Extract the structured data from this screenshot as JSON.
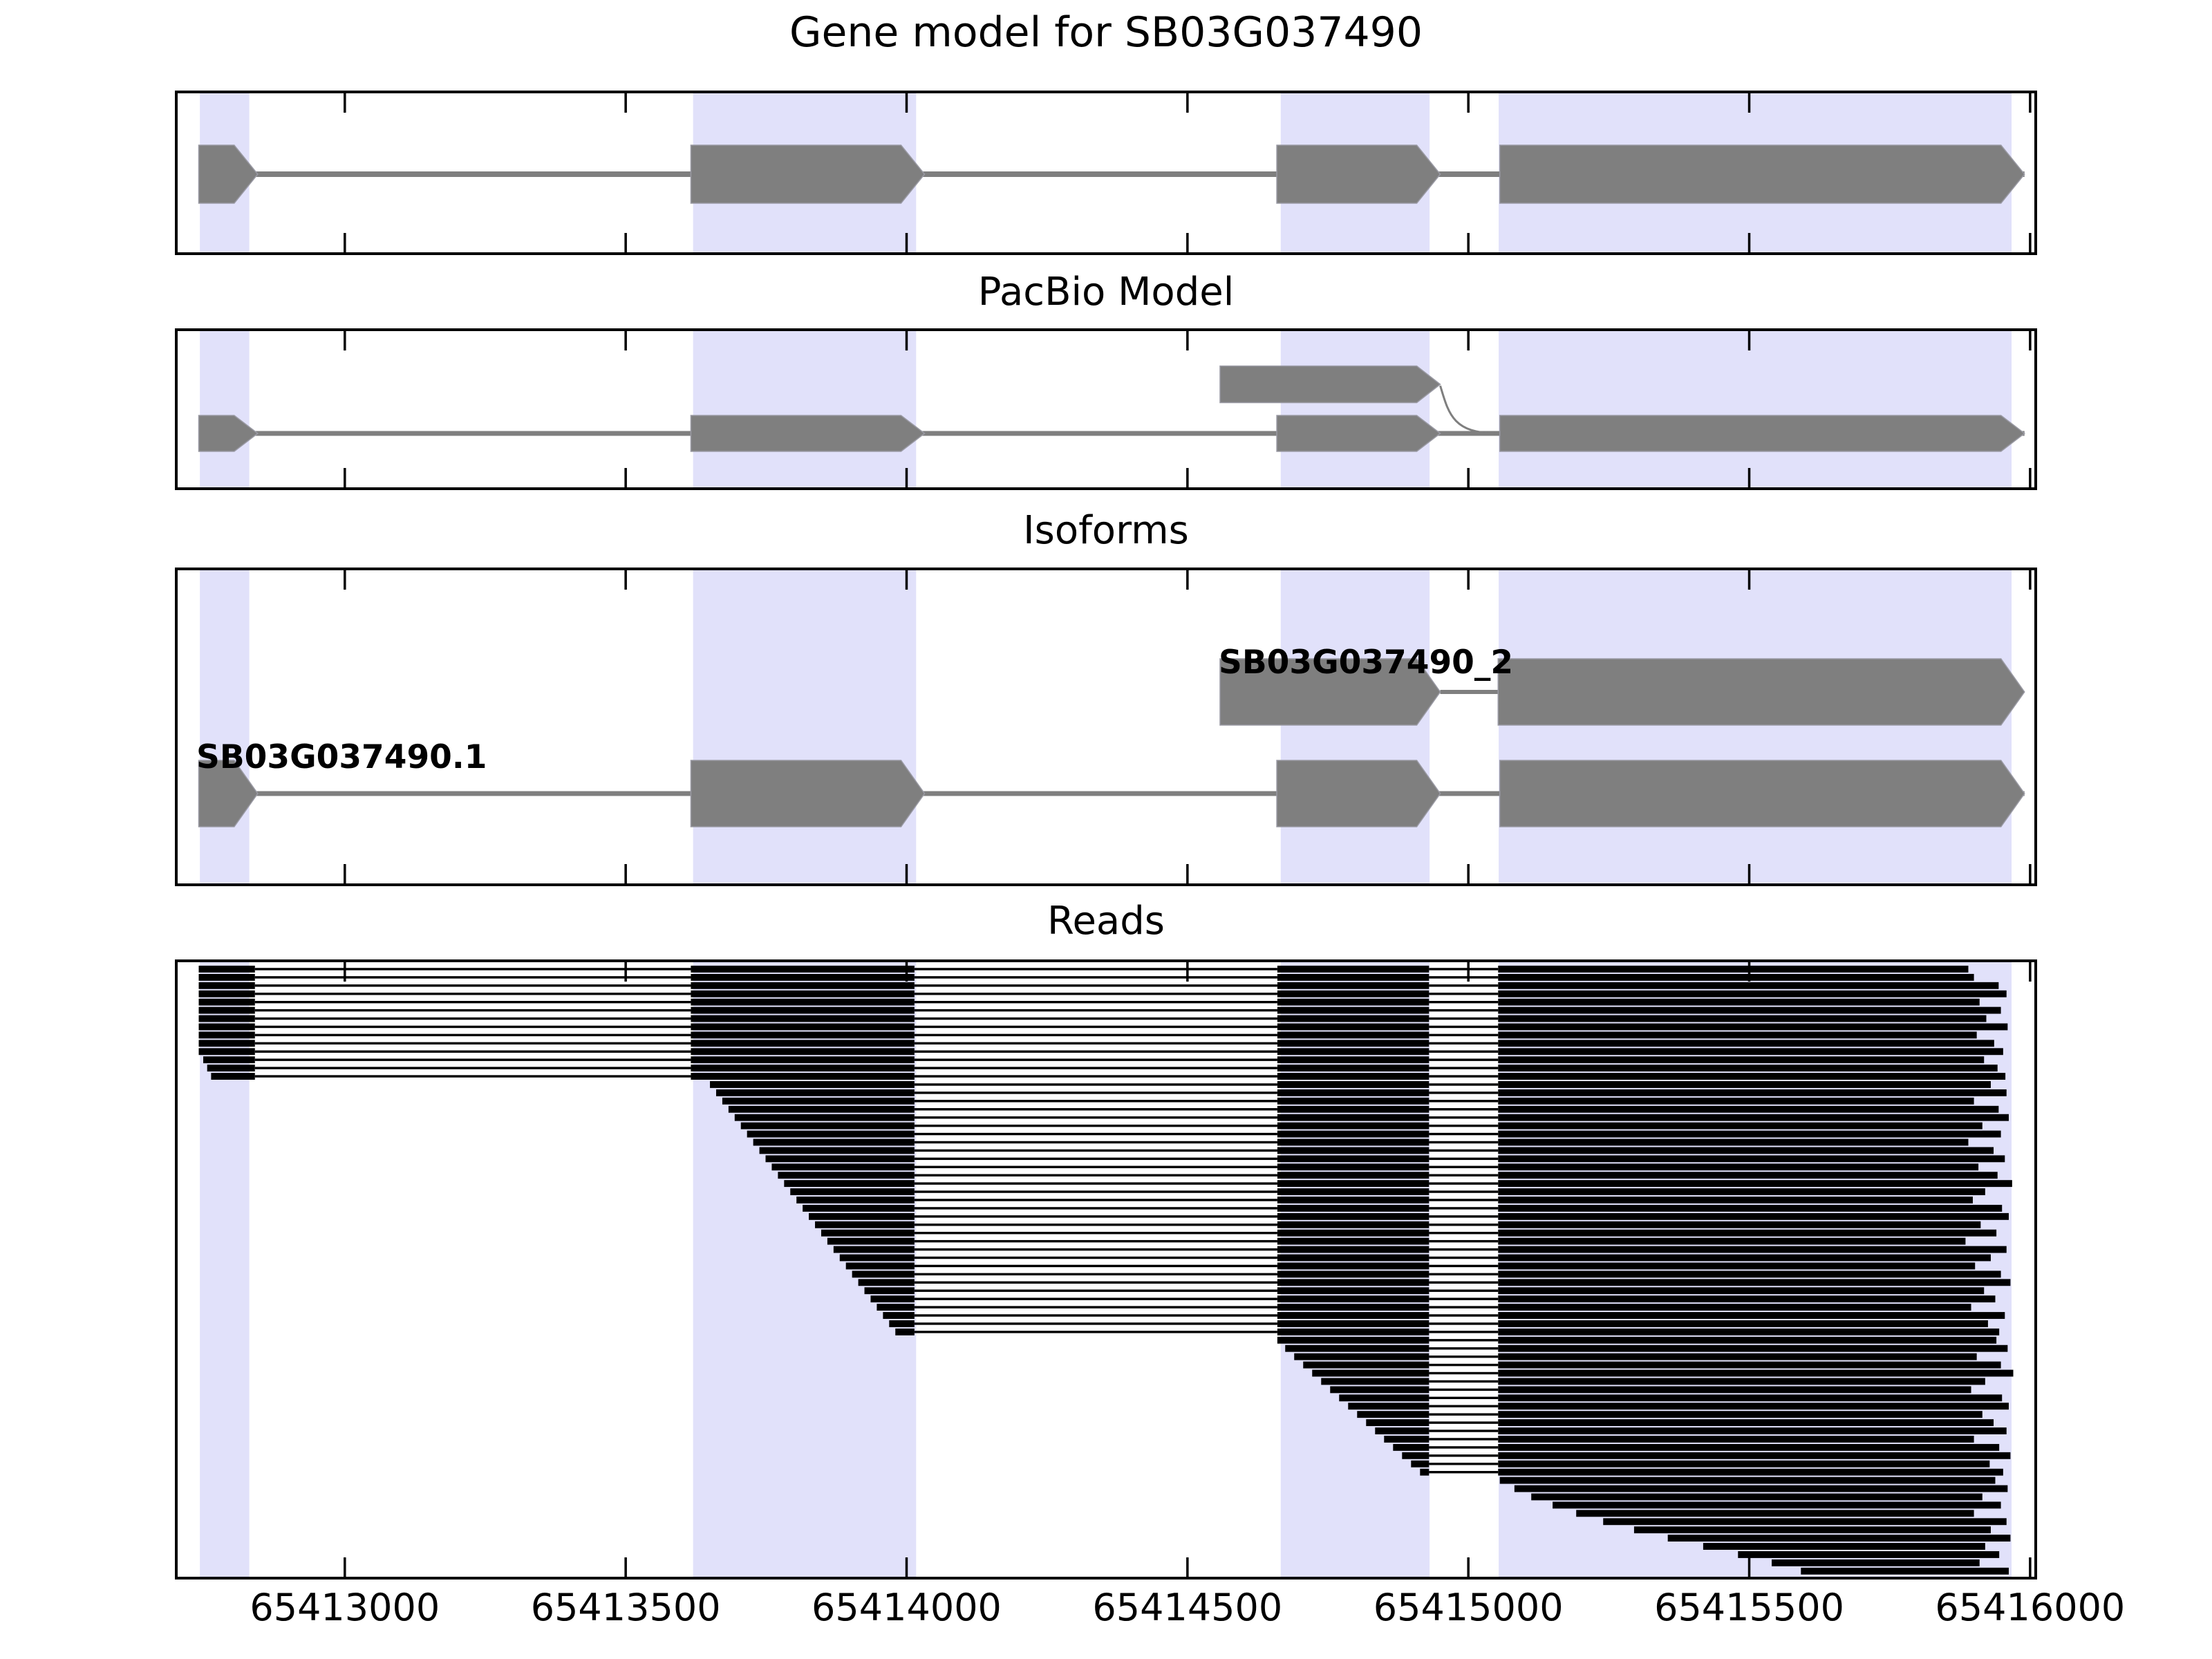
{
  "figure": {
    "panels": {
      "gene_model": {
        "title": "Gene model for SB03G037490"
      },
      "pacbio": {
        "title": "PacBio Model"
      },
      "isoforms": {
        "title": "Isoforms"
      },
      "reads": {
        "title": "Reads"
      }
    }
  },
  "chart_data": {
    "type": "gene-browser",
    "description": "Four stacked genome-browser tracks sharing one x axis (genomic position, bp): annotated gene model, PacBio model with one extra upstream exon spliced to the last exon, two isoforms, and stacked PacBio reads.",
    "xlim": [
      65412700,
      65416010
    ],
    "x_ticks": [
      65413000,
      65413500,
      65414000,
      65414500,
      65415000,
      65415500,
      65416000
    ],
    "x_tick_labels": [
      "65413000",
      "65413500",
      "65414000",
      "65414500",
      "65415000",
      "65415500",
      "65416000"
    ],
    "highlight_bands": [
      [
        65412742,
        65412830
      ],
      [
        65413620,
        65414017
      ],
      [
        65414666,
        65414931
      ],
      [
        65415054,
        65415967
      ]
    ],
    "gene_model": {
      "exons": [
        [
          65412740,
          65412845
        ],
        [
          65413616,
          65414032
        ],
        [
          65414659,
          65414950
        ],
        [
          65415056,
          65415990
        ]
      ]
    },
    "pacbio_model": {
      "main_exons": [
        [
          65412740,
          65412845
        ],
        [
          65413616,
          65414032
        ],
        [
          65414659,
          65414950
        ],
        [
          65415056,
          65415990
        ]
      ],
      "alt_upper_exon": [
        65414558,
        65414950
      ],
      "splice_junction_to": 65415056
    },
    "isoforms": [
      {
        "name": "SB03G037490_2",
        "row": "upper",
        "exons": [
          [
            65414558,
            65414950
          ],
          [
            65415053,
            65415990
          ]
        ]
      },
      {
        "name": "SB03G037490.1",
        "row": "lower",
        "exons": [
          [
            65412740,
            65412845
          ],
          [
            65413616,
            65414032
          ],
          [
            65414659,
            65414950
          ],
          [
            65415056,
            65415990
          ]
        ]
      }
    ],
    "read_exon_blocks": [
      [
        65412740,
        65412840
      ],
      [
        65413616,
        65414014
      ],
      [
        65414660,
        65414930
      ],
      [
        65415053,
        65415995
      ]
    ],
    "reads": [
      [
        65412740,
        65415890
      ],
      [
        65412740,
        65415900
      ],
      [
        65412740,
        65415944
      ],
      [
        65412740,
        65415958
      ],
      [
        65412740,
        65415910
      ],
      [
        65412740,
        65415948
      ],
      [
        65412740,
        65415922
      ],
      [
        65412740,
        65415960
      ],
      [
        65412740,
        65415905
      ],
      [
        65412740,
        65415936
      ],
      [
        65412740,
        65415952
      ],
      [
        65412748,
        65415918
      ],
      [
        65412755,
        65415942
      ],
      [
        65412762,
        65415956
      ],
      [
        65413650,
        65415930
      ],
      [
        65413661,
        65415958
      ],
      [
        65413672,
        65415900
      ],
      [
        65413683,
        65415944
      ],
      [
        65413694,
        65415962
      ],
      [
        65413705,
        65415915
      ],
      [
        65413716,
        65415948
      ],
      [
        65413727,
        65415890
      ],
      [
        65413738,
        65415935
      ],
      [
        65413749,
        65415955
      ],
      [
        65413760,
        65415908
      ],
      [
        65413771,
        65415942
      ],
      [
        65413782,
        65415968
      ],
      [
        65413793,
        65415920
      ],
      [
        65413804,
        65415898
      ],
      [
        65413815,
        65415950
      ],
      [
        65413826,
        65415962
      ],
      [
        65413837,
        65415912
      ],
      [
        65413848,
        65415940
      ],
      [
        65413859,
        65415885
      ],
      [
        65413870,
        65415958
      ],
      [
        65413881,
        65415930
      ],
      [
        65413892,
        65415902
      ],
      [
        65413903,
        65415948
      ],
      [
        65413914,
        65415965
      ],
      [
        65413925,
        65415918
      ],
      [
        65413936,
        65415938
      ],
      [
        65413947,
        65415895
      ],
      [
        65413958,
        65415955
      ],
      [
        65413969,
        65415925
      ],
      [
        65413980,
        65415945
      ],
      [
        65414658,
        65415940
      ],
      [
        65414674,
        65415960
      ],
      [
        65414690,
        65415905
      ],
      [
        65414706,
        65415948
      ],
      [
        65414722,
        65415970
      ],
      [
        65414738,
        65415920
      ],
      [
        65414754,
        65415895
      ],
      [
        65414770,
        65415950
      ],
      [
        65414786,
        65415962
      ],
      [
        65414802,
        65415915
      ],
      [
        65414818,
        65415935
      ],
      [
        65414834,
        65415958
      ],
      [
        65414850,
        65415900
      ],
      [
        65414866,
        65415945
      ],
      [
        65414882,
        65415965
      ],
      [
        65414898,
        65415928
      ],
      [
        65414914,
        65415952
      ],
      [
        65415056,
        65415938
      ],
      [
        65415082,
        65415960
      ],
      [
        65415112,
        65415915
      ],
      [
        65415150,
        65415948
      ],
      [
        65415192,
        65415900
      ],
      [
        65415240,
        65415958
      ],
      [
        65415295,
        65415930
      ],
      [
        65415355,
        65415965
      ],
      [
        65415418,
        65415920
      ],
      [
        65415480,
        65415945
      ],
      [
        65415540,
        65415910
      ],
      [
        65415592,
        65415962
      ]
    ],
    "colors": {
      "band": "#e1e1fa",
      "model_fill": "#7f7f7f",
      "model_edge": "#9a9aa4",
      "read_fill": "#000000",
      "frame": "#000000",
      "background": "#ffffff"
    }
  }
}
